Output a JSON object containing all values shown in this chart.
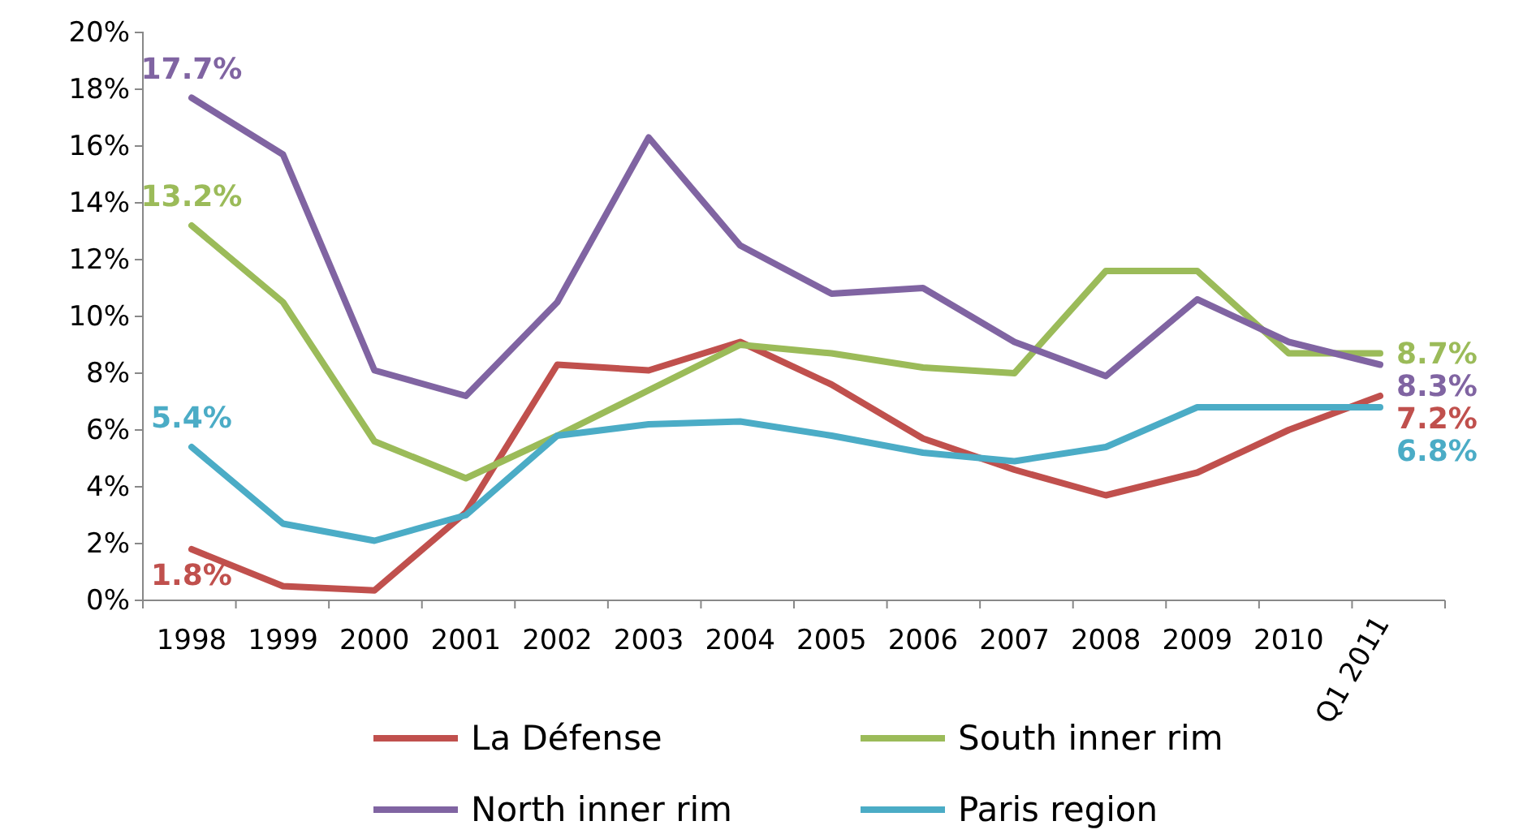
{
  "chart_data": {
    "type": "line",
    "categories": [
      "1998",
      "1999",
      "2000",
      "2001",
      "2002",
      "2003",
      "2004",
      "2005",
      "2006",
      "2007",
      "2008",
      "2009",
      "2010",
      "Q1 2011"
    ],
    "ylim": [
      0,
      20
    ],
    "yticks": [
      {
        "value": 0,
        "label": "0%"
      },
      {
        "value": 2,
        "label": "2%"
      },
      {
        "value": 4,
        "label": "4%"
      },
      {
        "value": 6,
        "label": "6%"
      },
      {
        "value": 8,
        "label": "8%"
      },
      {
        "value": 10,
        "label": "10%"
      },
      {
        "value": 12,
        "label": "12%"
      },
      {
        "value": 14,
        "label": "14%"
      },
      {
        "value": 16,
        "label": "16%"
      },
      {
        "value": 18,
        "label": "18%"
      },
      {
        "value": 20,
        "label": "20%"
      }
    ],
    "grid": false,
    "legend": "bottom",
    "marker": "none",
    "line_style": "solid",
    "series": [
      {
        "name": "La Défense",
        "color": "#c0504d",
        "values": [
          1.8,
          0.5,
          0.35,
          3.1,
          8.3,
          8.1,
          9.1,
          7.6,
          5.7,
          4.6,
          3.7,
          4.5,
          6.0,
          7.2
        ],
        "value_labels": [
          "1.8%",
          null,
          null,
          null,
          null,
          null,
          null,
          null,
          null,
          null,
          null,
          null,
          null,
          "7.2%"
        ]
      },
      {
        "name": "South inner rim",
        "color": "#9bbb59",
        "values": [
          13.2,
          10.5,
          5.6,
          4.3,
          5.8,
          7.4,
          9.0,
          8.7,
          8.2,
          8.0,
          11.6,
          11.6,
          8.7,
          8.7
        ],
        "value_labels": [
          "13.2%",
          null,
          null,
          null,
          null,
          null,
          null,
          null,
          null,
          null,
          null,
          null,
          null,
          "8.7%"
        ]
      },
      {
        "name": "North inner rim",
        "color": "#8064a2",
        "values": [
          17.7,
          15.7,
          8.1,
          7.2,
          10.5,
          16.3,
          12.5,
          10.8,
          11.0,
          9.1,
          7.9,
          10.6,
          9.1,
          8.3
        ],
        "value_labels": [
          "17.7%",
          null,
          null,
          null,
          null,
          null,
          null,
          null,
          null,
          null,
          null,
          null,
          null,
          "8.3%"
        ]
      },
      {
        "name": "Paris region",
        "color": "#4bacc6",
        "values": [
          5.4,
          2.7,
          2.1,
          3.0,
          5.8,
          6.2,
          6.3,
          5.8,
          5.2,
          4.9,
          5.4,
          6.8,
          6.8,
          6.8
        ],
        "value_labels": [
          "5.4%",
          null,
          null,
          null,
          null,
          null,
          null,
          null,
          null,
          null,
          null,
          null,
          null,
          "6.8%"
        ]
      }
    ]
  }
}
